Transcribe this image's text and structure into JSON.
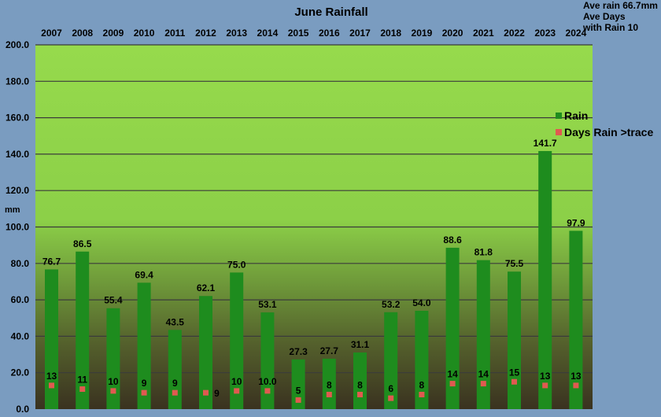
{
  "chart_data": {
    "type": "bar",
    "title": "June Rainfall",
    "ylabel": "mm",
    "xlabel": "",
    "ylim": [
      0,
      200
    ],
    "yticks": [
      "0.0",
      "20.0",
      "40.0",
      "60.0",
      "80.0",
      "100.0",
      "120.0",
      "140.0",
      "160.0",
      "180.0",
      "200.0"
    ],
    "categories": [
      "2007",
      "2008",
      "2009",
      "2010",
      "2011",
      "2012",
      "2013",
      "2014",
      "2015",
      "2016",
      "2017",
      "2018",
      "2019",
      "2020",
      "2021",
      "2022",
      "2023",
      "2024"
    ],
    "series": [
      {
        "name": "Rain",
        "type": "bar",
        "color": "#1e8c1e",
        "values": [
          76.7,
          86.5,
          55.4,
          69.4,
          43.5,
          62.1,
          75.0,
          53.1,
          27.3,
          27.7,
          31.1,
          53.2,
          54.0,
          88.6,
          81.8,
          75.5,
          141.7,
          97.9
        ],
        "labels": [
          "76.7",
          "86.5",
          "55.4",
          "69.4",
          "43.5",
          "62.1",
          "75.0",
          "53.1",
          "27.3",
          "27.7",
          "31.1",
          "53.2",
          "54.0",
          "88.6",
          "81.8",
          "75.5",
          "141.7",
          "97.9"
        ]
      },
      {
        "name": "Days Rain >trace",
        "type": "marker",
        "color": "#e05a50",
        "values": [
          13,
          11,
          10,
          9,
          9,
          9,
          10,
          10,
          5,
          8,
          8,
          6,
          8,
          14,
          14,
          15,
          13,
          13
        ],
        "labels": [
          "13",
          "11",
          "10",
          "9",
          "9",
          "9",
          "10",
          "10.0",
          "5",
          "8",
          "8",
          "6",
          "8",
          "14",
          "14",
          "15",
          "13",
          "13"
        ]
      }
    ],
    "legend": "right",
    "grid": true,
    "annotation": {
      "line1": "Ave rain 66.7mm",
      "line2": "Ave Days",
      "line3": "with Rain 10"
    },
    "colors": {
      "background": "#7a9cc0",
      "plot_top": "#94d94a",
      "plot_bottom": "#3a3220",
      "bar": "#1e8c1e",
      "marker": "#e05a50"
    }
  }
}
